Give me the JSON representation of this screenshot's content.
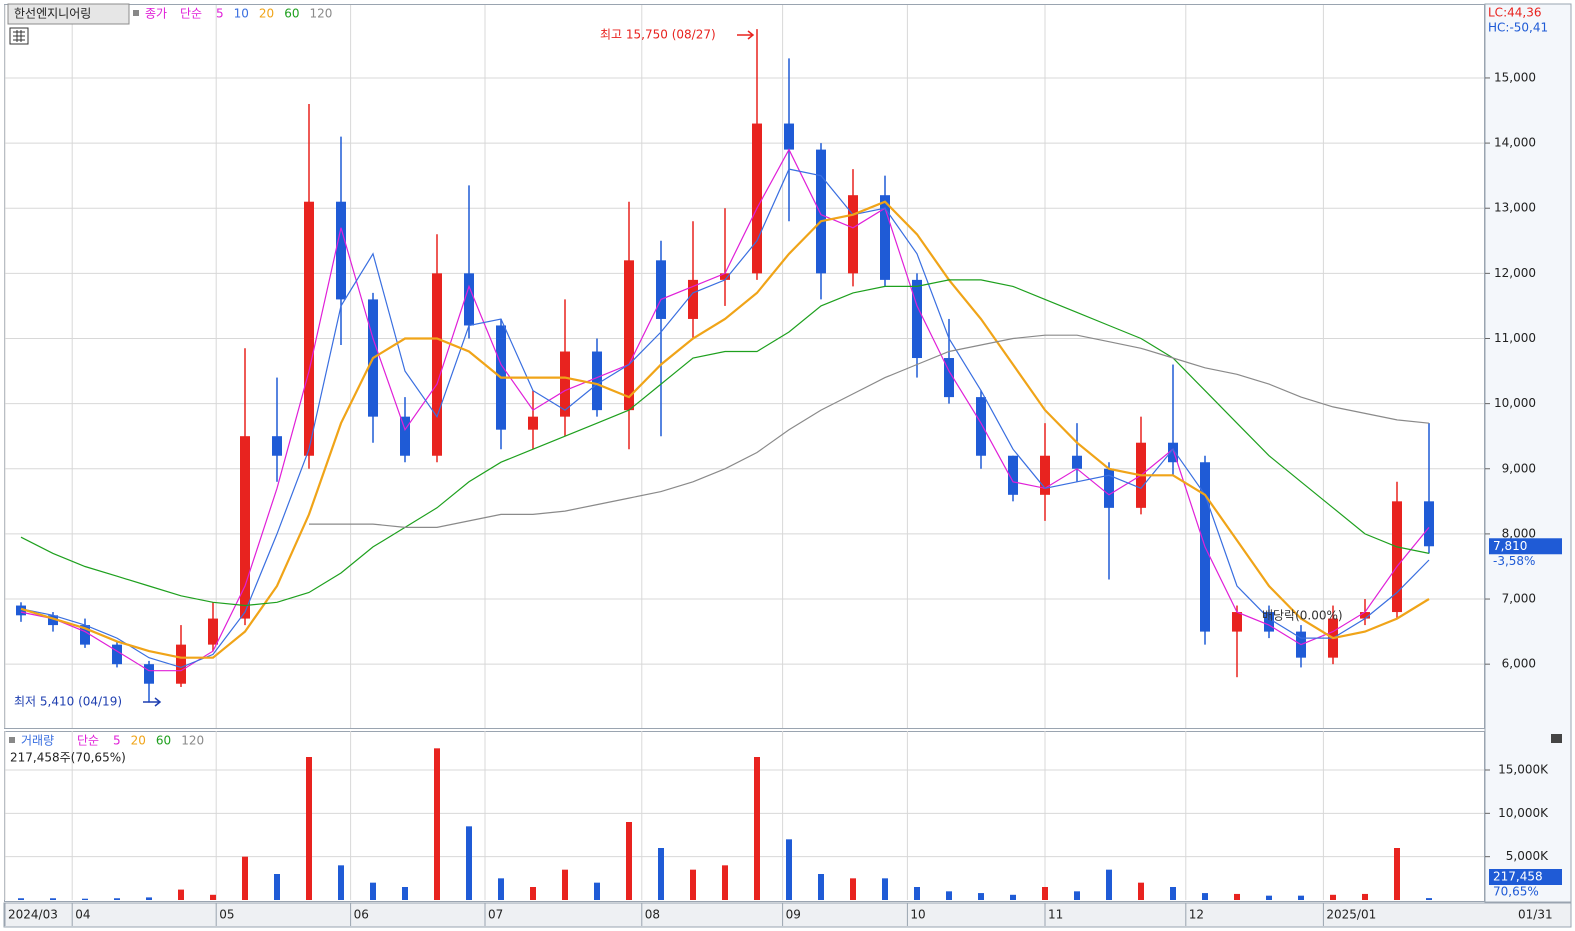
{
  "chart_data": [
    {
      "type": "candlestick",
      "title": "한선엔지니어링",
      "subtitle": "종가",
      "ma_label": "단순",
      "indicator_lc": "LC:44,36",
      "indicator_hc": "HC:-50,41",
      "high_annotation": "최고 15,750 (08/27)",
      "low_annotation": "최저 5,410 (04/19)",
      "event_annotation": "배당락(0.00%)",
      "last_price_label": "7,810",
      "last_change_label": "-3,58%",
      "x_end_label": "01/31",
      "up_color": "#e8231f",
      "down_color": "#1f5bd6",
      "categories": [
        null,
        null,
        null,
        null,
        null,
        null,
        null,
        null,
        null,
        null,
        null,
        null,
        null,
        null,
        null,
        null,
        null,
        null,
        null,
        null,
        null,
        null,
        null,
        null,
        null,
        null,
        null,
        null,
        null,
        null,
        null,
        null,
        null,
        null,
        null,
        null,
        null,
        null,
        null,
        null,
        null,
        null,
        null,
        null,
        null
      ],
      "open": [
        6900,
        6750,
        6600,
        6300,
        6000,
        5700,
        6300,
        6700,
        9500,
        9200,
        13100,
        11600,
        9800,
        9200,
        12000,
        11200,
        9600,
        9800,
        10800,
        9900,
        12200,
        11300,
        11900,
        12000,
        14300,
        13900,
        12000,
        13200,
        11900,
        10700,
        10100,
        9200,
        8600,
        9200,
        9000,
        8400,
        9400,
        9100,
        6500,
        6800,
        6500,
        6100,
        6700,
        6800,
        8500
      ],
      "high": [
        6950,
        6800,
        6700,
        6350,
        6050,
        6600,
        6950,
        10850,
        10400,
        14600,
        14100,
        11700,
        10100,
        12600,
        13350,
        11300,
        10200,
        11600,
        11000,
        13100,
        12500,
        12800,
        13000,
        15750,
        15300,
        14000,
        13600,
        13500,
        12000,
        11300,
        10200,
        9200,
        9700,
        9700,
        9100,
        9800,
        10600,
        9200,
        6900,
        6900,
        6600,
        6900,
        7000,
        8800,
        9700
      ],
      "low": [
        6650,
        6500,
        6250,
        5950,
        5410,
        5650,
        6200,
        6600,
        8800,
        9000,
        10900,
        9400,
        9100,
        9100,
        11000,
        9300,
        9300,
        9500,
        9800,
        9300,
        9500,
        11000,
        11500,
        11900,
        12800,
        11600,
        11800,
        11800,
        10400,
        10000,
        9000,
        8500,
        8200,
        8800,
        7300,
        8300,
        8900,
        6300,
        5800,
        6400,
        5950,
        6000,
        6600,
        6700,
        7700
      ],
      "close": [
        6750,
        6600,
        6300,
        6000,
        5700,
        6300,
        6700,
        9500,
        9200,
        13100,
        11600,
        9800,
        9200,
        12000,
        11200,
        9600,
        9800,
        10800,
        9900,
        12200,
        11300,
        11900,
        12000,
        14300,
        13900,
        12000,
        13200,
        11900,
        10700,
        10100,
        9200,
        8600,
        9200,
        9000,
        8400,
        9400,
        9100,
        6500,
        6800,
        6500,
        6100,
        6700,
        6800,
        8500,
        7810
      ],
      "series": [
        {
          "name": "5",
          "color": "#e020d8",
          "values": [
            6800,
            6700,
            6500,
            6200,
            5900,
            5900,
            6200,
            7200,
            8700,
            10500,
            12700,
            11000,
            9600,
            10300,
            11800,
            10600,
            9900,
            10200,
            10400,
            10600,
            11600,
            11800,
            12000,
            13000,
            13900,
            12900,
            12700,
            13000,
            11500,
            10500,
            9700,
            8800,
            8700,
            9000,
            8600,
            8900,
            9300,
            7800,
            6800,
            6600,
            6300,
            6500,
            6800,
            7500,
            8100
          ]
        },
        {
          "name": "10",
          "color": "#3a6fe0",
          "values": [
            6850,
            6750,
            6600,
            6400,
            6100,
            5950,
            6150,
            6800,
            8000,
            9300,
            11500,
            12300,
            10500,
            9800,
            11200,
            11300,
            10200,
            9900,
            10300,
            10600,
            11100,
            11700,
            11900,
            12500,
            13600,
            13500,
            12900,
            13000,
            12300,
            11000,
            10200,
            9300,
            8700,
            8800,
            8900,
            8700,
            9300,
            8600,
            7200,
            6700,
            6400,
            6400,
            6700,
            7100,
            7600
          ]
        },
        {
          "name": "20",
          "color": "#f0a418",
          "values": [
            6850,
            6700,
            6550,
            6350,
            6200,
            6100,
            6100,
            6500,
            7200,
            8300,
            9700,
            10700,
            11000,
            11000,
            10800,
            10400,
            10400,
            10400,
            10300,
            10100,
            10600,
            11000,
            11300,
            11700,
            12300,
            12800,
            12900,
            13100,
            12600,
            11900,
            11300,
            10600,
            9900,
            9400,
            9000,
            8900,
            8900,
            8600,
            7900,
            7200,
            6700,
            6400,
            6500,
            6700,
            7000
          ]
        },
        {
          "name": "60",
          "color": "#1ea01e",
          "values": [
            7950,
            7700,
            7500,
            7350,
            7200,
            7050,
            6950,
            6900,
            6950,
            7100,
            7400,
            7800,
            8100,
            8400,
            8800,
            9100,
            9300,
            9500,
            9700,
            9900,
            10300,
            10700,
            10800,
            10800,
            11100,
            11500,
            11700,
            11800,
            11800,
            11900,
            11900,
            11800,
            11600,
            11400,
            11200,
            11000,
            10700,
            10200,
            9700,
            9200,
            8800,
            8400,
            8000,
            7800,
            7700
          ]
        },
        {
          "name": "120",
          "color": "#8a8a8a",
          "values": [
            null,
            null,
            null,
            null,
            null,
            null,
            null,
            null,
            null,
            8150,
            8150,
            8150,
            8100,
            8100,
            8200,
            8300,
            8300,
            8350,
            8450,
            8550,
            8650,
            8800,
            9000,
            9250,
            9600,
            9900,
            10150,
            10400,
            10600,
            10800,
            10900,
            11000,
            11050,
            11050,
            10950,
            10850,
            10700,
            10550,
            10450,
            10300,
            10100,
            9950,
            9850,
            9750,
            9700
          ]
        }
      ],
      "ylim": [
        5020,
        16120
      ],
      "yticks": [
        {
          "value": 6000,
          "label": "6,000"
        },
        {
          "value": 7000,
          "label": "7,000"
        },
        {
          "value": 8000,
          "label": "8,000"
        },
        {
          "value": 9000,
          "label": "9,000"
        },
        {
          "value": 10000,
          "label": "10,000"
        },
        {
          "value": 11000,
          "label": "11,000"
        },
        {
          "value": 12000,
          "label": "12,000"
        },
        {
          "value": 13000,
          "label": "13,000"
        },
        {
          "value": 14000,
          "label": "14,000"
        },
        {
          "value": 15000,
          "label": "15,000"
        }
      ],
      "xticks": [
        {
          "value": 0,
          "label": "2024/03"
        },
        {
          "value": 2.1,
          "label": "04"
        },
        {
          "value": 6.6,
          "label": "05"
        },
        {
          "value": 10.8,
          "label": "06"
        },
        {
          "value": 15,
          "label": "07"
        },
        {
          "value": 19.9,
          "label": "08"
        },
        {
          "value": 24.3,
          "label": "09"
        },
        {
          "value": 28.2,
          "label": "10"
        },
        {
          "value": 32.5,
          "label": "11"
        },
        {
          "value": 36.9,
          "label": "12"
        },
        {
          "value": 41.2,
          "label": "2025/01"
        }
      ],
      "grid": true
    },
    {
      "type": "bar",
      "title": "거래량",
      "ma_label": "단순",
      "ma_names": [
        "5",
        "20",
        "60",
        "120"
      ],
      "ma_colors": [
        "#e020d8",
        "#f0a418",
        "#1ea01e",
        "#8a8a8a"
      ],
      "status": "217,458주(70,65%)",
      "last_value_label": "217,458",
      "last_ratio_label": "70,65%",
      "values": [
        200,
        200,
        150,
        200,
        300,
        1200,
        600,
        5000,
        3000,
        16500,
        4000,
        2000,
        1500,
        17500,
        8500,
        2500,
        1500,
        3500,
        2000,
        9000,
        6000,
        3500,
        4000,
        16500,
        7000,
        3000,
        2500,
        2500,
        1500,
        1000,
        800,
        600,
        1500,
        1000,
        3500,
        2000,
        1500,
        800,
        700,
        500,
        500,
        600,
        700,
        6000,
        217.458
      ],
      "ylim": [
        0,
        19500
      ],
      "yticks": [
        {
          "value": 5000,
          "label": "5,000K"
        },
        {
          "value": 10000,
          "label": "10,000K"
        },
        {
          "value": 15000,
          "label": "15,000K"
        }
      ],
      "grid": true
    }
  ]
}
